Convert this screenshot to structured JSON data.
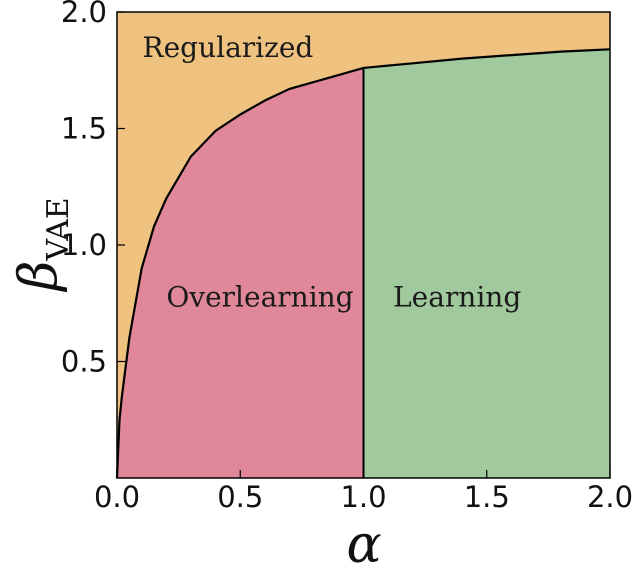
{
  "chart_data": {
    "type": "area",
    "xlabel": "α",
    "ylabel": "β",
    "ylabel_subscript": "VAE",
    "xlim": [
      0,
      2
    ],
    "ylim": [
      0,
      2
    ],
    "x_ticks": [
      "0.0",
      "0.5",
      "1.0",
      "1.5",
      "2.0"
    ],
    "y_ticks": [
      "0.5",
      "1.0",
      "1.5",
      "2.0"
    ],
    "grid": false,
    "boundary_curve": {
      "x": [
        0,
        0.01,
        0.02,
        0.05,
        0.1,
        0.15,
        0.2,
        0.3,
        0.4,
        0.5,
        0.6,
        0.7,
        0.8,
        0.9,
        1.0,
        1.2,
        1.4,
        1.6,
        1.8,
        2.0
      ],
      "y": [
        0,
        0.25,
        0.35,
        0.6,
        0.9,
        1.08,
        1.2,
        1.38,
        1.49,
        1.56,
        1.62,
        1.67,
        1.7,
        1.73,
        1.76,
        1.78,
        1.8,
        1.815,
        1.83,
        1.84
      ]
    },
    "vertical_boundary_x": 1.0,
    "regions": [
      {
        "label": "Regularized",
        "color": "#f0c280",
        "label_at": [
          0.45,
          1.85
        ]
      },
      {
        "label": "Overlearning",
        "color": "#e0889a",
        "label_at": [
          0.58,
          0.78
        ]
      },
      {
        "label": "Learning",
        "color": "#a0c99d",
        "label_at": [
          1.38,
          0.78
        ]
      }
    ]
  }
}
